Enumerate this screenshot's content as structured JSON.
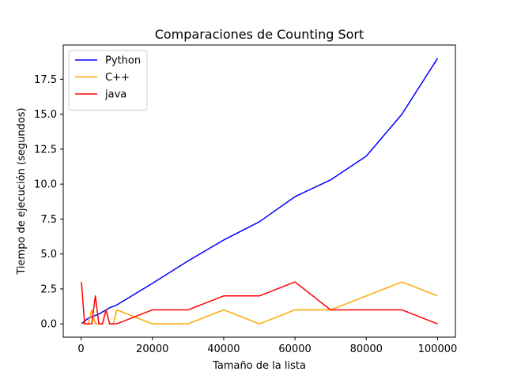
{
  "chart_data": {
    "type": "line",
    "title": "Comparaciones de Counting Sort",
    "xlabel": "Tamaño de la lista",
    "ylabel": "Tiempo de ejecución (segundos)",
    "xlim": [
      -5000,
      105000
    ],
    "ylim": [
      -0.95,
      19.95
    ],
    "xticks": [
      0,
      20000,
      40000,
      60000,
      80000,
      100000
    ],
    "xtick_labels": [
      "0",
      "20000",
      "40000",
      "60000",
      "80000",
      "100000"
    ],
    "yticks": [
      0,
      2.5,
      5,
      7.5,
      10,
      12.5,
      15,
      17.5
    ],
    "ytick_labels": [
      "0.0",
      "2.5",
      "5.0",
      "7.5",
      "10.0",
      "12.5",
      "15.0",
      "17.5"
    ],
    "grid": false,
    "legend_position": "top-left",
    "series": [
      {
        "name": "Python",
        "color": "#0000ff",
        "x": [
          100,
          1000,
          2000,
          3000,
          4000,
          5000,
          6000,
          7000,
          8000,
          9000,
          10000,
          20000,
          30000,
          40000,
          50000,
          60000,
          70000,
          80000,
          90000,
          100000
        ],
        "y": [
          0.0,
          0.2,
          0.4,
          0.5,
          0.6,
          0.7,
          0.85,
          1.0,
          1.15,
          1.25,
          1.35,
          2.9,
          4.5,
          6.0,
          7.3,
          9.1,
          10.3,
          12.0,
          15.0,
          19.0
        ]
      },
      {
        "name": "C++",
        "color": "#ffa500",
        "x": [
          100,
          1000,
          2000,
          3000,
          4000,
          5000,
          6000,
          7000,
          8000,
          9000,
          10000,
          20000,
          30000,
          40000,
          50000,
          60000,
          70000,
          80000,
          90000,
          100000
        ],
        "y": [
          0,
          0,
          0,
          1,
          0,
          0,
          0,
          1,
          0,
          0,
          1,
          0,
          0,
          1,
          0,
          1,
          1,
          2,
          3,
          2
        ]
      },
      {
        "name": "java",
        "color": "#ff0000",
        "x": [
          100,
          1000,
          2000,
          3000,
          4000,
          5000,
          6000,
          7000,
          8000,
          9000,
          10000,
          20000,
          30000,
          40000,
          50000,
          60000,
          70000,
          80000,
          90000,
          100000
        ],
        "y": [
          3,
          0,
          0,
          0,
          2,
          0,
          0,
          1,
          0,
          0,
          0,
          1,
          1,
          2,
          2,
          3,
          1,
          1,
          1,
          0
        ]
      }
    ]
  }
}
